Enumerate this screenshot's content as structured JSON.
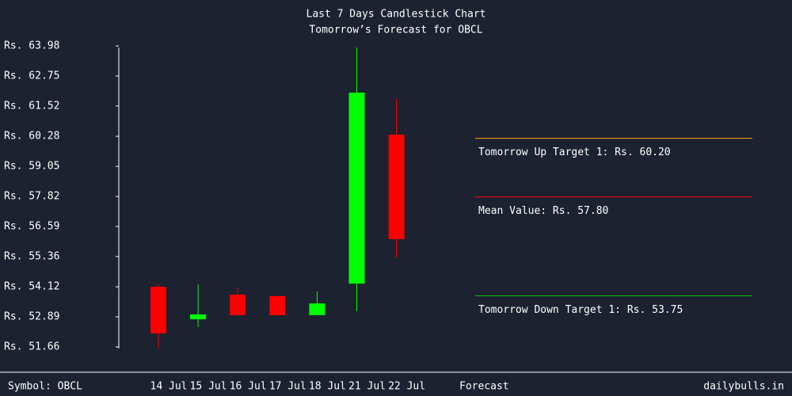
{
  "chart_data": {
    "type": "candlestick",
    "title": "Last 7 Days Candlestick Chart",
    "subtitle": "Tomorrow’s Forecast for OBCL",
    "categories": [
      "14 Jul",
      "15 Jul",
      "16 Jul",
      "17 Jul",
      "18 Jul",
      "21 Jul",
      "22 Jul"
    ],
    "open": [
      54.12,
      52.79,
      53.8,
      53.74,
      52.96,
      54.25,
      60.35
    ],
    "high": [
      54.22,
      54.22,
      54.09,
      53.74,
      53.93,
      63.92,
      61.81
    ],
    "low": [
      51.6,
      52.47,
      52.96,
      52.96,
      52.96,
      53.12,
      55.32
    ],
    "close": [
      52.21,
      52.99,
      52.96,
      52.96,
      53.44,
      62.07,
      56.07
    ],
    "up_color": "#00ff00",
    "down_color": "#ff0000",
    "ylim": [
      51.66,
      63.98
    ],
    "yticks": [
      {
        "value": 63.98,
        "label": "Rs. 63.98"
      },
      {
        "value": 62.75,
        "label": "Rs. 62.75"
      },
      {
        "value": 61.52,
        "label": "Rs. 61.52"
      },
      {
        "value": 60.28,
        "label": "Rs. 60.28"
      },
      {
        "value": 59.05,
        "label": "Rs. 59.05"
      },
      {
        "value": 57.82,
        "label": "Rs. 57.82"
      },
      {
        "value": 56.59,
        "label": "Rs. 56.59"
      },
      {
        "value": 55.36,
        "label": "Rs. 55.36"
      },
      {
        "value": 54.12,
        "label": "Rs. 54.12"
      },
      {
        "value": 52.89,
        "label": "Rs. 52.89"
      },
      {
        "value": 51.66,
        "label": "Rs. 51.66"
      }
    ],
    "forecast_label": "Forecast",
    "forecast": [
      {
        "label": "Tomorrow Up Target 1: Rs. 60.20",
        "value": 60.2,
        "color": "#ffa500"
      },
      {
        "label": "Mean Value: Rs. 57.80",
        "value": 57.8,
        "color": "#ff0000"
      },
      {
        "label": "Tomorrow Down Target 1: Rs. 53.75",
        "value": 53.75,
        "color": "#00cc00"
      }
    ],
    "symbol": "Symbol: OBCL",
    "source": "dailybulls.in"
  }
}
